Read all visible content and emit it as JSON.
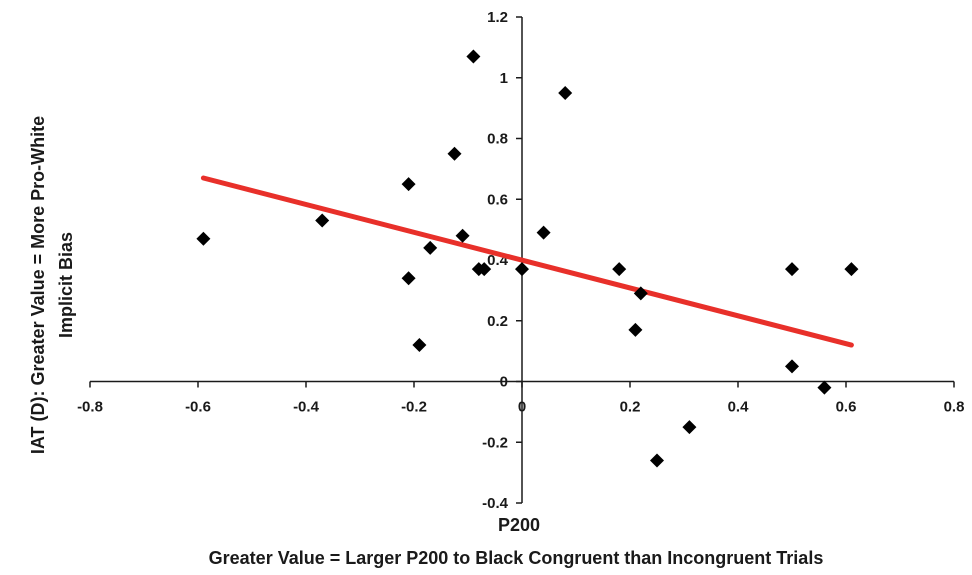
{
  "chart_data": {
    "type": "scatter",
    "title": "",
    "xlabel": "P200",
    "xlabel_sub": "Greater Value = Larger P200 to Black Congruent than Incongruent Trials",
    "ylabel": "IAT (D): Greater Value = More Pro-White",
    "ylabel_sub": "Implicit Bias",
    "xlim": [
      -0.8,
      0.8
    ],
    "ylim": [
      -0.4,
      1.2
    ],
    "xticks": [
      -0.8,
      -0.6,
      -0.4,
      -0.2,
      0,
      0.2,
      0.4,
      0.6,
      0.8
    ],
    "yticks": [
      -0.4,
      -0.2,
      0,
      0.2,
      0.4,
      0.6,
      0.8,
      1,
      1.2
    ],
    "grid": false,
    "legend": "none",
    "points": [
      {
        "x": -0.59,
        "y": 0.47
      },
      {
        "x": -0.37,
        "y": 0.53
      },
      {
        "x": -0.21,
        "y": 0.65
      },
      {
        "x": -0.21,
        "y": 0.34
      },
      {
        "x": -0.19,
        "y": 0.12
      },
      {
        "x": -0.17,
        "y": 0.44
      },
      {
        "x": -0.125,
        "y": 0.75
      },
      {
        "x": -0.11,
        "y": 0.48
      },
      {
        "x": -0.09,
        "y": 1.07
      },
      {
        "x": -0.08,
        "y": 0.37
      },
      {
        "x": -0.07,
        "y": 0.37
      },
      {
        "x": 0.0,
        "y": 0.37
      },
      {
        "x": 0.04,
        "y": 0.49
      },
      {
        "x": 0.08,
        "y": 0.95
      },
      {
        "x": 0.18,
        "y": 0.37
      },
      {
        "x": 0.21,
        "y": 0.17
      },
      {
        "x": 0.22,
        "y": 0.29
      },
      {
        "x": 0.25,
        "y": -0.26
      },
      {
        "x": 0.31,
        "y": -0.15
      },
      {
        "x": 0.5,
        "y": 0.37
      },
      {
        "x": 0.5,
        "y": 0.05
      },
      {
        "x": 0.56,
        "y": -0.02
      },
      {
        "x": 0.61,
        "y": 0.37
      }
    ],
    "trendline": {
      "x1": -0.59,
      "y1": 0.67,
      "x2": 0.61,
      "y2": 0.12
    },
    "colors": {
      "marker": "#000000",
      "trendline": "#e8302a",
      "axis": "#1a1a1a"
    }
  }
}
